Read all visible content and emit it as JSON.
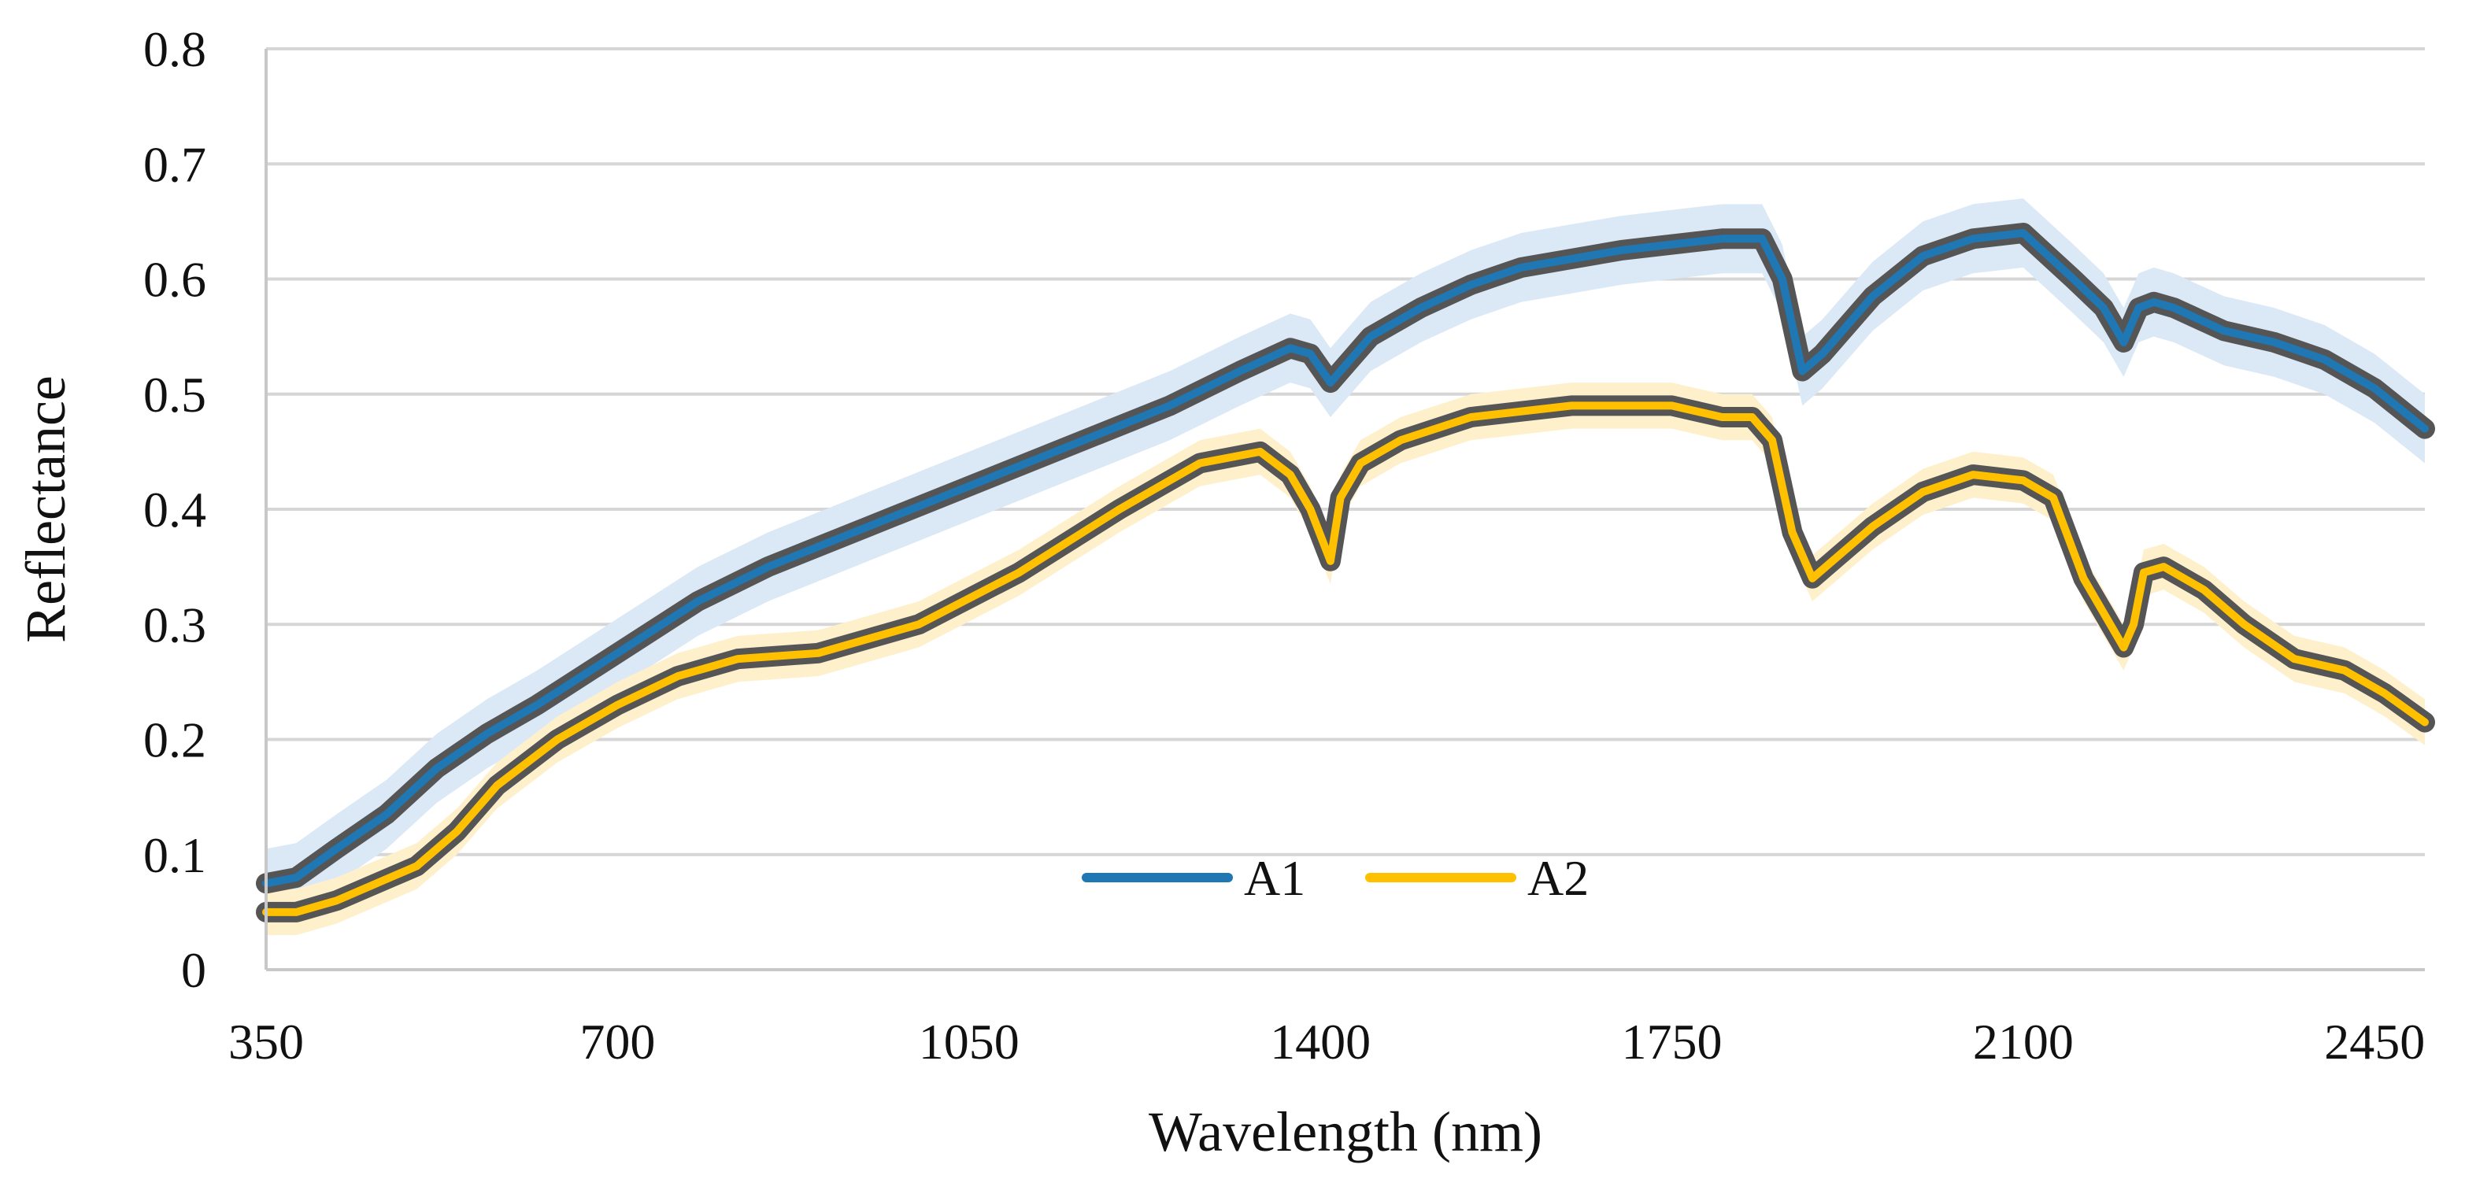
{
  "chart_data": {
    "type": "line",
    "title": "",
    "xlabel": "Wavelength (nm)",
    "ylabel": "Reflectance",
    "xlim": [
      350,
      2500
    ],
    "ylim": [
      0,
      0.8
    ],
    "x_ticks": [
      350,
      700,
      1050,
      1400,
      1750,
      2100,
      2450
    ],
    "y_ticks": [
      0,
      0.1,
      0.2,
      0.3,
      0.4,
      0.5,
      0.6,
      0.7,
      0.8
    ],
    "y_tick_labels": [
      "0",
      "0.1",
      "0.2",
      "0.3",
      "0.4",
      "0.5",
      "0.6",
      "0.7",
      "0.8"
    ],
    "grid": true,
    "legend_position": "bottom-center",
    "series": [
      {
        "name": "A1",
        "color": "#1f77b4",
        "band_color": "#dbe9f6",
        "band_half_width": 0.03,
        "x": [
          350,
          380,
          420,
          470,
          520,
          570,
          620,
          700,
          780,
          850,
          950,
          1050,
          1150,
          1250,
          1320,
          1370,
          1390,
          1410,
          1420,
          1450,
          1500,
          1550,
          1600,
          1700,
          1800,
          1840,
          1860,
          1880,
          1900,
          1920,
          1950,
          2000,
          2050,
          2100,
          2150,
          2180,
          2200,
          2215,
          2230,
          2250,
          2300,
          2350,
          2400,
          2450,
          2500
        ],
        "y": [
          0.075,
          0.08,
          0.105,
          0.135,
          0.175,
          0.205,
          0.23,
          0.275,
          0.32,
          0.35,
          0.385,
          0.42,
          0.455,
          0.49,
          0.52,
          0.54,
          0.535,
          0.51,
          0.52,
          0.55,
          0.575,
          0.595,
          0.61,
          0.625,
          0.635,
          0.635,
          0.6,
          0.52,
          0.535,
          0.555,
          0.585,
          0.62,
          0.635,
          0.64,
          0.6,
          0.575,
          0.545,
          0.575,
          0.58,
          0.575,
          0.555,
          0.545,
          0.53,
          0.505,
          0.47
        ]
      },
      {
        "name": "A2",
        "color": "#ffc000",
        "band_color": "#fff0cc",
        "band_half_width": 0.02,
        "x": [
          350,
          380,
          420,
          460,
          500,
          540,
          580,
          640,
          700,
          760,
          820,
          900,
          1000,
          1100,
          1200,
          1280,
          1340,
          1370,
          1390,
          1410,
          1420,
          1440,
          1480,
          1550,
          1650,
          1750,
          1800,
          1830,
          1850,
          1870,
          1890,
          1910,
          1950,
          2000,
          2050,
          2100,
          2130,
          2160,
          2180,
          2200,
          2210,
          2220,
          2240,
          2280,
          2320,
          2370,
          2420,
          2460,
          2500
        ],
        "y": [
          0.05,
          0.05,
          0.06,
          0.075,
          0.09,
          0.12,
          0.16,
          0.2,
          0.23,
          0.255,
          0.27,
          0.275,
          0.3,
          0.345,
          0.4,
          0.44,
          0.45,
          0.43,
          0.4,
          0.355,
          0.41,
          0.44,
          0.46,
          0.48,
          0.49,
          0.49,
          0.48,
          0.48,
          0.46,
          0.38,
          0.34,
          0.355,
          0.385,
          0.415,
          0.43,
          0.425,
          0.41,
          0.34,
          0.31,
          0.28,
          0.3,
          0.345,
          0.35,
          0.33,
          0.3,
          0.27,
          0.26,
          0.24,
          0.215
        ]
      }
    ]
  }
}
